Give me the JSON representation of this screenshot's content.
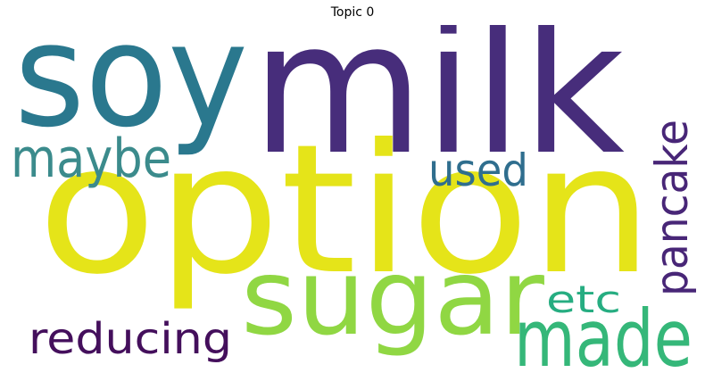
{
  "title": "Topic 0",
  "words": [
    {
      "text": "milk",
      "color": "#472d7b"
    },
    {
      "text": "soy",
      "color": "#2a788e"
    },
    {
      "text": "option",
      "color": "#e5e419"
    },
    {
      "text": "sugar",
      "color": "#90d743"
    },
    {
      "text": "made",
      "color": "#35b779"
    },
    {
      "text": "maybe",
      "color": "#3b8b8c"
    },
    {
      "text": "used",
      "color": "#2f6e8e"
    },
    {
      "text": "pancake",
      "color": "#482677"
    },
    {
      "text": "reducing",
      "color": "#440f5c"
    },
    {
      "text": "etc",
      "color": "#26ad81"
    }
  ]
}
